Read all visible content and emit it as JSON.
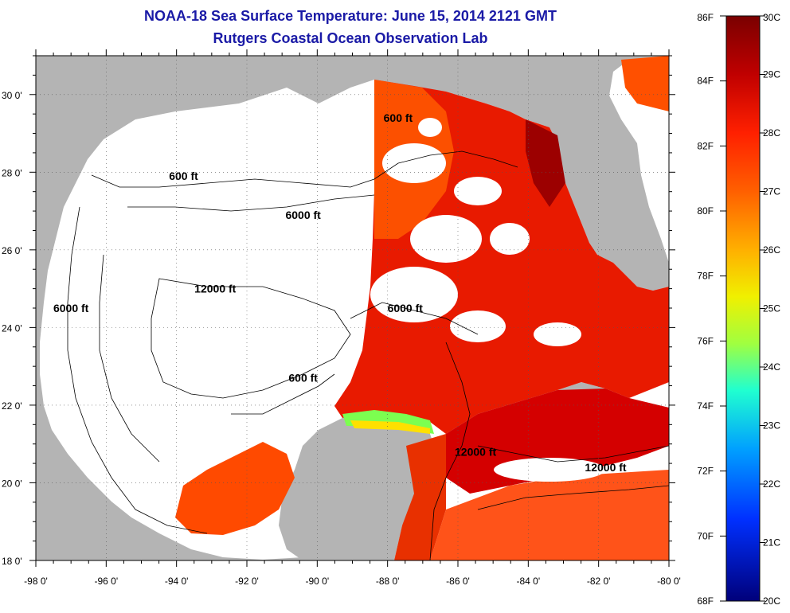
{
  "title": "NOAA-18 Sea Surface Temperature:  June 15, 2014 2121 GMT",
  "subtitle": "Rutgers Coastal Ocean Observation Lab",
  "map": {
    "lon_range": [
      -98,
      -80
    ],
    "lat_range": [
      18,
      31
    ],
    "lon_ticks": [
      "-98 0'",
      "-96 0'",
      "-94 0'",
      "-92 0'",
      "-90 0'",
      "-88 0'",
      "-86 0'",
      "-84 0'",
      "-82 0'",
      "-80 0'"
    ],
    "lat_ticks": [
      "18 0'",
      "20 0'",
      "22 0'",
      "24 0'",
      "26 0'",
      "28 0'",
      "30 0'"
    ],
    "land_color": "#b4b4b4",
    "cloud_color": "#ffffff",
    "contour_labels": [
      {
        "text": "600 ft",
        "lon": -93.8,
        "lat": 27.8
      },
      {
        "text": "600 ft",
        "lon": -87.7,
        "lat": 29.3
      },
      {
        "text": "600 ft",
        "lon": -90.4,
        "lat": 22.6
      },
      {
        "text": "6000 ft",
        "lon": -90.4,
        "lat": 26.8
      },
      {
        "text": "6000 ft",
        "lon": -97.0,
        "lat": 24.4
      },
      {
        "text": "6000 ft",
        "lon": -87.5,
        "lat": 24.4
      },
      {
        "text": "12000 ft",
        "lon": -92.9,
        "lat": 24.9
      },
      {
        "text": "12000 ft",
        "lon": -85.5,
        "lat": 20.7
      },
      {
        "text": "12000 ft",
        "lon": -81.8,
        "lat": 20.3
      }
    ]
  },
  "colorbar": {
    "f_labels": [
      "86F",
      "84F",
      "82F",
      "80F",
      "78F",
      "76F",
      "74F",
      "72F",
      "70F",
      "68F"
    ],
    "c_labels": [
      "30C",
      "29C",
      "28C",
      "27C",
      "26C",
      "25C",
      "24C",
      "23C",
      "22C",
      "21C",
      "20C"
    ],
    "colors": [
      "#7a0000",
      "#c80000",
      "#ff2000",
      "#ff6a00",
      "#ffb400",
      "#f0f000",
      "#90ff40",
      "#20ffd0",
      "#00b0ff",
      "#0050ff",
      "#0000c0",
      "#00007a"
    ]
  }
}
